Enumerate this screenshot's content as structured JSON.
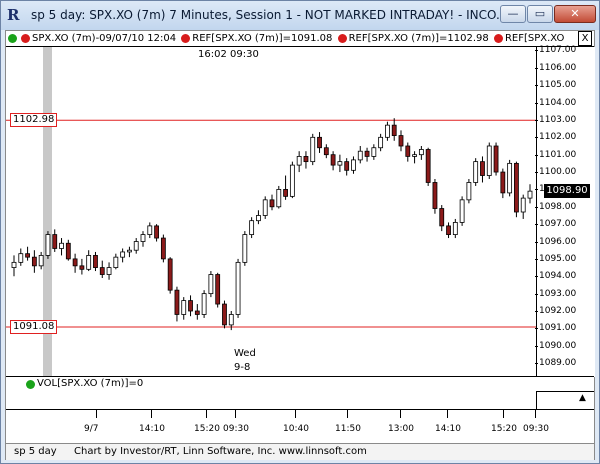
{
  "window": {
    "title": "sp 5 day: SPX.XO (7m) 7 Minutes, Session 1 - NOT MARKED INTRADAY! - INCO...",
    "app_icon": "R",
    "buttons": {
      "minimize": "—",
      "maximize": "▭",
      "close": "✕"
    }
  },
  "header": {
    "symbol": "SPX.XO (7m)-09/07/10 12:04",
    "ref1": "REF[SPX.XO (7m)]=1091.08",
    "ref2": "REF[SPX.XO (7m)]=1102.98",
    "ref3": "REF[SPX.XO",
    "close_label": "X",
    "colors": {
      "green_dot": "#1aa31a",
      "red_dot": "#d81c1c"
    }
  },
  "annotations": {
    "top_times": "16:02  09:30",
    "day_label": "Wed",
    "date_label": "9-8"
  },
  "levels": {
    "upper": {
      "label": "1102.98",
      "value": 1102.98
    },
    "lower": {
      "label": "1091.08",
      "value": 1091.08
    },
    "color": "#e02020"
  },
  "price_tag": "1098.90",
  "y_axis": {
    "min": 1088.2,
    "max": 1107.2,
    "ticks": [
      "1107.00",
      "1106.00",
      "1105.00",
      "1104.00",
      "1103.00",
      "1102.00",
      "1101.00",
      "1100.00",
      "1099.00",
      "1098.00",
      "1097.00",
      "1096.00",
      "1095.00",
      "1094.00",
      "1093.00",
      "1092.00",
      "1091.00",
      "1090.00",
      "1089.00"
    ]
  },
  "volume": {
    "label": "VOL[SPX.XO (7m)]=0",
    "arrow": "▲"
  },
  "x_axis": {
    "ticks": [
      "9/7",
      "14:10",
      "15:20",
      "09:30",
      "10:40",
      "11:50",
      "13:00",
      "14:10",
      "15:20",
      "09:30"
    ]
  },
  "footer": {
    "chart_name": "sp 5 day",
    "credit": "Chart by Investor/RT, Linn Software, Inc. www.linnsoft.com"
  },
  "chart_data": {
    "type": "candlestick",
    "up_color": "#ffffff",
    "down_color": "#8b1a1a",
    "candles": [
      {
        "o": 1094.5,
        "h": 1095.2,
        "l": 1094.0,
        "c": 1094.8
      },
      {
        "o": 1094.8,
        "h": 1095.6,
        "l": 1094.6,
        "c": 1095.3
      },
      {
        "o": 1095.3,
        "h": 1095.7,
        "l": 1094.9,
        "c": 1095.1
      },
      {
        "o": 1095.1,
        "h": 1095.5,
        "l": 1094.2,
        "c": 1094.6
      },
      {
        "o": 1094.6,
        "h": 1095.4,
        "l": 1094.4,
        "c": 1095.2
      },
      {
        "o": 1095.2,
        "h": 1096.6,
        "l": 1095.0,
        "c": 1096.4
      },
      {
        "o": 1096.4,
        "h": 1096.7,
        "l": 1095.4,
        "c": 1095.6
      },
      {
        "o": 1095.6,
        "h": 1096.2,
        "l": 1095.2,
        "c": 1095.9
      },
      {
        "o": 1095.9,
        "h": 1096.1,
        "l": 1094.9,
        "c": 1095.0
      },
      {
        "o": 1095.0,
        "h": 1095.3,
        "l": 1094.2,
        "c": 1094.6
      },
      {
        "o": 1094.6,
        "h": 1095.0,
        "l": 1094.1,
        "c": 1094.4
      },
      {
        "o": 1094.4,
        "h": 1095.5,
        "l": 1094.3,
        "c": 1095.2
      },
      {
        "o": 1095.2,
        "h": 1095.4,
        "l": 1094.3,
        "c": 1094.5
      },
      {
        "o": 1094.5,
        "h": 1094.9,
        "l": 1093.9,
        "c": 1094.1
      },
      {
        "o": 1094.1,
        "h": 1094.8,
        "l": 1093.8,
        "c": 1094.5
      },
      {
        "o": 1094.5,
        "h": 1095.3,
        "l": 1094.4,
        "c": 1095.1
      },
      {
        "o": 1095.1,
        "h": 1095.6,
        "l": 1094.8,
        "c": 1095.4
      },
      {
        "o": 1095.4,
        "h": 1095.7,
        "l": 1095.1,
        "c": 1095.5
      },
      {
        "o": 1095.5,
        "h": 1096.2,
        "l": 1095.3,
        "c": 1096.0
      },
      {
        "o": 1096.0,
        "h": 1096.6,
        "l": 1095.7,
        "c": 1096.4
      },
      {
        "o": 1096.4,
        "h": 1097.1,
        "l": 1096.2,
        "c": 1096.9
      },
      {
        "o": 1096.9,
        "h": 1097.0,
        "l": 1096.0,
        "c": 1096.2
      },
      {
        "o": 1096.2,
        "h": 1096.4,
        "l": 1094.8,
        "c": 1095.0
      },
      {
        "o": 1095.0,
        "h": 1095.1,
        "l": 1093.0,
        "c": 1093.2
      },
      {
        "o": 1093.2,
        "h": 1093.4,
        "l": 1091.4,
        "c": 1091.8
      },
      {
        "o": 1091.8,
        "h": 1092.8,
        "l": 1091.5,
        "c": 1092.6
      },
      {
        "o": 1092.6,
        "h": 1092.9,
        "l": 1091.7,
        "c": 1092.0
      },
      {
        "o": 1092.0,
        "h": 1092.4,
        "l": 1091.5,
        "c": 1091.8
      },
      {
        "o": 1091.8,
        "h": 1093.2,
        "l": 1091.6,
        "c": 1093.0
      },
      {
        "o": 1093.0,
        "h": 1094.3,
        "l": 1092.8,
        "c": 1094.1
      },
      {
        "o": 1094.1,
        "h": 1094.2,
        "l": 1092.2,
        "c": 1092.4
      },
      {
        "o": 1092.4,
        "h": 1092.6,
        "l": 1091.0,
        "c": 1091.2
      },
      {
        "o": 1091.2,
        "h": 1092.0,
        "l": 1090.9,
        "c": 1091.8
      },
      {
        "o": 1091.8,
        "h": 1095.0,
        "l": 1091.6,
        "c": 1094.8
      },
      {
        "o": 1094.8,
        "h": 1096.6,
        "l": 1094.6,
        "c": 1096.4
      },
      {
        "o": 1096.4,
        "h": 1097.4,
        "l": 1096.2,
        "c": 1097.2
      },
      {
        "o": 1097.2,
        "h": 1097.8,
        "l": 1097.0,
        "c": 1097.5
      },
      {
        "o": 1097.5,
        "h": 1098.6,
        "l": 1097.3,
        "c": 1098.4
      },
      {
        "o": 1098.4,
        "h": 1098.7,
        "l": 1097.8,
        "c": 1098.0
      },
      {
        "o": 1098.0,
        "h": 1099.2,
        "l": 1097.9,
        "c": 1099.0
      },
      {
        "o": 1099.0,
        "h": 1099.8,
        "l": 1098.4,
        "c": 1098.6
      },
      {
        "o": 1098.6,
        "h": 1100.6,
        "l": 1098.5,
        "c": 1100.4
      },
      {
        "o": 1100.4,
        "h": 1101.2,
        "l": 1100.0,
        "c": 1100.9
      },
      {
        "o": 1100.9,
        "h": 1101.2,
        "l": 1100.2,
        "c": 1100.6
      },
      {
        "o": 1100.6,
        "h": 1102.2,
        "l": 1100.4,
        "c": 1102.0
      },
      {
        "o": 1102.0,
        "h": 1102.3,
        "l": 1101.1,
        "c": 1101.4
      },
      {
        "o": 1101.4,
        "h": 1101.6,
        "l": 1100.8,
        "c": 1101.0
      },
      {
        "o": 1101.0,
        "h": 1101.2,
        "l": 1100.1,
        "c": 1100.4
      },
      {
        "o": 1100.4,
        "h": 1101.0,
        "l": 1100.0,
        "c": 1100.6
      },
      {
        "o": 1100.6,
        "h": 1100.8,
        "l": 1099.8,
        "c": 1100.1
      },
      {
        "o": 1100.1,
        "h": 1100.9,
        "l": 1099.9,
        "c": 1100.7
      },
      {
        "o": 1100.7,
        "h": 1101.5,
        "l": 1100.5,
        "c": 1101.2
      },
      {
        "o": 1101.2,
        "h": 1101.4,
        "l": 1100.6,
        "c": 1100.9
      },
      {
        "o": 1100.9,
        "h": 1101.6,
        "l": 1100.7,
        "c": 1101.4
      },
      {
        "o": 1101.4,
        "h": 1102.2,
        "l": 1101.2,
        "c": 1102.0
      },
      {
        "o": 1102.0,
        "h": 1102.9,
        "l": 1101.8,
        "c": 1102.7
      },
      {
        "o": 1102.7,
        "h": 1103.1,
        "l": 1101.8,
        "c": 1102.1
      },
      {
        "o": 1102.1,
        "h": 1102.4,
        "l": 1101.2,
        "c": 1101.5
      },
      {
        "o": 1101.5,
        "h": 1101.7,
        "l": 1100.6,
        "c": 1100.9
      },
      {
        "o": 1100.9,
        "h": 1101.2,
        "l": 1100.5,
        "c": 1101.0
      },
      {
        "o": 1101.0,
        "h": 1101.5,
        "l": 1100.7,
        "c": 1101.3
      },
      {
        "o": 1101.3,
        "h": 1101.4,
        "l": 1099.2,
        "c": 1099.4
      },
      {
        "o": 1099.4,
        "h": 1099.6,
        "l": 1097.6,
        "c": 1097.9
      },
      {
        "o": 1097.9,
        "h": 1098.1,
        "l": 1096.6,
        "c": 1096.9
      },
      {
        "o": 1096.9,
        "h": 1097.1,
        "l": 1096.2,
        "c": 1096.4
      },
      {
        "o": 1096.4,
        "h": 1097.3,
        "l": 1096.2,
        "c": 1097.1
      },
      {
        "o": 1097.1,
        "h": 1098.6,
        "l": 1096.9,
        "c": 1098.4
      },
      {
        "o": 1098.4,
        "h": 1099.6,
        "l": 1098.2,
        "c": 1099.4
      },
      {
        "o": 1099.4,
        "h": 1100.8,
        "l": 1099.2,
        "c": 1100.6
      },
      {
        "o": 1100.6,
        "h": 1100.9,
        "l": 1099.4,
        "c": 1099.8
      },
      {
        "o": 1099.8,
        "h": 1101.7,
        "l": 1099.6,
        "c": 1101.5
      },
      {
        "o": 1101.5,
        "h": 1101.7,
        "l": 1099.8,
        "c": 1100.0
      },
      {
        "o": 1100.0,
        "h": 1100.2,
        "l": 1098.5,
        "c": 1098.8
      },
      {
        "o": 1098.8,
        "h": 1100.7,
        "l": 1098.6,
        "c": 1100.5
      },
      {
        "o": 1100.5,
        "h": 1100.6,
        "l": 1097.4,
        "c": 1097.7
      },
      {
        "o": 1097.7,
        "h": 1098.7,
        "l": 1097.3,
        "c": 1098.5
      },
      {
        "o": 1098.5,
        "h": 1099.3,
        "l": 1098.2,
        "c": 1098.9
      }
    ]
  }
}
